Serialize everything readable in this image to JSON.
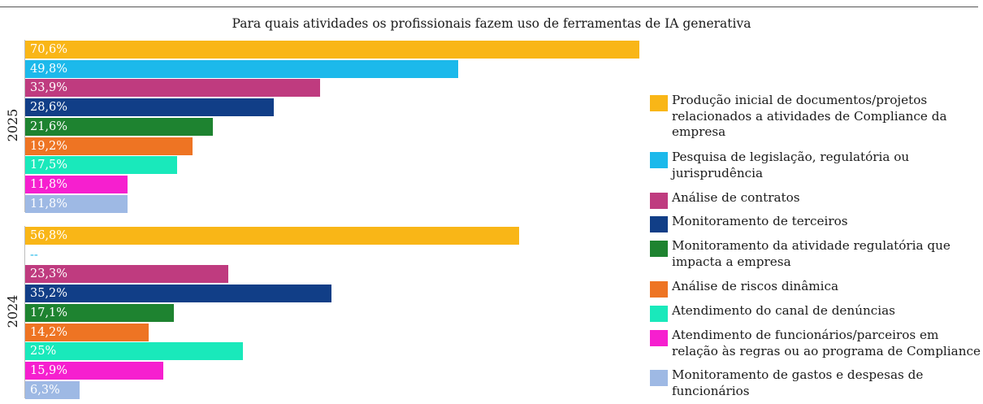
{
  "chart_data": {
    "type": "bar",
    "orientation": "horizontal",
    "title": "Para quais atividades os profissionais fazem uso de ferramentas de IA generativa",
    "categories": [
      "Produção inicial de documentos/projetos relacionados a atividades de Compliance da empresa",
      "Pesquisa de legislação, regulatória ou jurisprudência",
      "Análise de contratos",
      "Monitoramento de terceiros",
      "Monitoramento da atividade regulatória que impacta a empresa",
      "Análise de riscos dinâmica",
      "Atendimento do canal de denúncias",
      "Atendimento de funcionários/parceiros em relação às regras ou ao programa de Compliance",
      "Monitoramento de gastos e despesas de funcionários"
    ],
    "colors": [
      "#f9b617",
      "#1cb9eb",
      "#bf3b7f",
      "#113e87",
      "#1e8330",
      "#ee7423",
      "#19e9bb",
      "#f61fcf",
      "#9eb9e4"
    ],
    "groups": [
      {
        "name": "2025",
        "values": [
          70.6,
          49.8,
          33.9,
          28.6,
          21.6,
          19.2,
          17.5,
          11.8,
          11.8
        ],
        "labels": [
          "70,6%",
          "49,8%",
          "33,9%",
          "28,6%",
          "21,6%",
          "19,2%",
          "17,5%",
          "11,8%",
          "11,8%"
        ]
      },
      {
        "name": "2024",
        "values": [
          56.8,
          null,
          23.3,
          35.2,
          17.1,
          14.2,
          25,
          15.9,
          6.3
        ],
        "labels": [
          "56,8%",
          "--",
          "23,3%",
          "35,2%",
          "17,1%",
          "14,2%",
          "25%",
          "15,9%",
          "6,3%"
        ]
      }
    ],
    "xlim": [
      0,
      100
    ],
    "grid": false,
    "legend_position": "right"
  }
}
